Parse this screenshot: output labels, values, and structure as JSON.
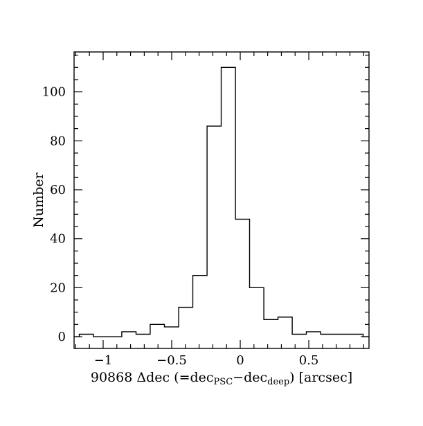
{
  "figure": {
    "background": "#ffffff",
    "line_color": "#000000"
  },
  "chart_data": {
    "type": "bar",
    "subtype": "step-histogram",
    "title": "",
    "xlabel_plain": "90868 Δdec (=dec_PSC−dec_deep) [arcsec]",
    "xlabel_parts": [
      {
        "text": "90868 Δdec (=dec",
        "sub": false
      },
      {
        "text": "PSC",
        "sub": true
      },
      {
        "text": "−dec",
        "sub": false
      },
      {
        "text": "deep",
        "sub": true
      },
      {
        "text": ") [arcsec]",
        "sub": false
      }
    ],
    "ylabel": "Number",
    "xlim": [
      -1.212,
      0.939
    ],
    "ylim": [
      -4.8,
      116.3
    ],
    "grid": false,
    "legend": "none",
    "x_major_ticks": [
      -1,
      -0.5,
      0,
      0.5
    ],
    "x_major_labels": [
      "−1",
      "−0.5",
      "0",
      "0.5"
    ],
    "x_minor_step": 0.1,
    "y_major_ticks": [
      0,
      20,
      40,
      60,
      80,
      100
    ],
    "y_major_labels": [
      "0",
      "20",
      "40",
      "60",
      "80",
      "100"
    ],
    "y_minor_step": 5,
    "bin_edges": [
      -1.212,
      -1.174,
      -1.071,
      -0.967,
      -0.864,
      -0.76,
      -0.657,
      -0.553,
      -0.449,
      -0.346,
      -0.242,
      -0.139,
      -0.035,
      0.068,
      0.172,
      0.275,
      0.379,
      0.482,
      0.586,
      0.689,
      0.793,
      0.896,
      0.939
    ],
    "counts": [
      0,
      1,
      0,
      0,
      2,
      1,
      5,
      4,
      12,
      25,
      86,
      110,
      48,
      20,
      7,
      8,
      1,
      2,
      1,
      1,
      1,
      0
    ]
  }
}
